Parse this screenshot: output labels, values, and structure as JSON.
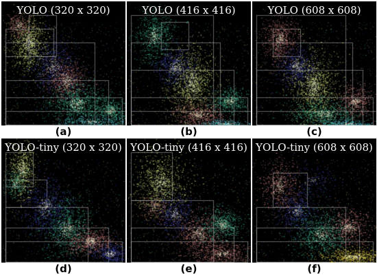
{
  "panels": [
    {
      "title": "YOLO (320 x 320)",
      "label": "(a)"
    },
    {
      "title": "YOLO (416 x 416)",
      "label": "(b)"
    },
    {
      "title": "YOLO (608 x 608)",
      "label": "(c)"
    },
    {
      "title": "YOLO-tiny (320 x 320)",
      "label": "(d)"
    },
    {
      "title": "YOLO-tiny (416 x 416)",
      "label": "(e)"
    },
    {
      "title": "YOLO-tiny (608 x 608)",
      "label": "(f)"
    }
  ],
  "colors": {
    "background": "#000000",
    "box_outline": "#b8b8b8",
    "clusters": [
      "#c8d87a",
      "#3a3f9e",
      "#c07a78",
      "#3fae8a",
      "#57c7d8",
      "#e9d54a"
    ]
  }
}
